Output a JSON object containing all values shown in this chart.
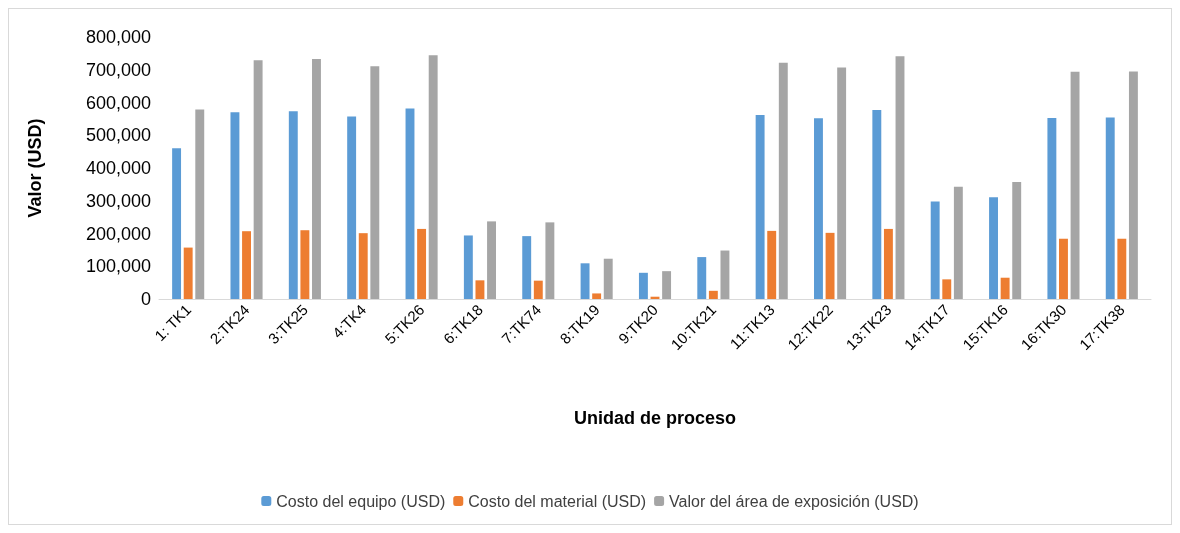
{
  "chart_data": {
    "type": "bar",
    "xlabel": "Unidad de proceso",
    "ylabel": "Valor (USD)",
    "categories": [
      "1: TK1",
      "2:TK24",
      "3:TK25",
      "4:TK4",
      "5:TK26",
      "6:TK18",
      "7:TK74",
      "8:TK19",
      "9:TK20",
      "10:TK21",
      "11:TK13",
      "12:TK22",
      "13:TK23",
      "14:TK17",
      "15:TK16",
      "16:TK30",
      "17:TK38"
    ],
    "series": [
      {
        "name": "Costo del equipo (USD)",
        "color": "#5b9bd5",
        "values": [
          460000,
          570000,
          573000,
          557000,
          582000,
          194000,
          192000,
          109000,
          80000,
          128000,
          562000,
          552000,
          577000,
          298000,
          311000,
          553000,
          554000
        ]
      },
      {
        "name": "Costo del material (USD)",
        "color": "#ed7d31",
        "values": [
          157000,
          207000,
          210000,
          201000,
          214000,
          57000,
          56000,
          17000,
          7000,
          25000,
          208000,
          202000,
          214000,
          60000,
          65000,
          184000,
          184000
        ]
      },
      {
        "name": "Valor del área de exposición (USD)",
        "color": "#a5a5a5",
        "values": [
          579000,
          729000,
          733000,
          711000,
          744000,
          237000,
          234000,
          123000,
          85000,
          148000,
          721000,
          707000,
          741000,
          343000,
          357000,
          694000,
          695000
        ]
      }
    ],
    "ylim": [
      0,
      800000
    ],
    "yticks": [
      0,
      {
        "value": 100000,
        "label": "100,000"
      },
      {
        "value": 200000,
        "label": "200,000"
      },
      {
        "value": 300000,
        "label": "300,000"
      },
      {
        "value": 400000,
        "label": "400,000"
      },
      {
        "value": 500000,
        "label": "500,000"
      },
      {
        "value": 600000,
        "label": "600,000"
      },
      {
        "value": 700000,
        "label": "700,000"
      },
      {
        "value": 800000,
        "label": "800,000"
      }
    ],
    "grid": false,
    "legend": "bottom"
  }
}
